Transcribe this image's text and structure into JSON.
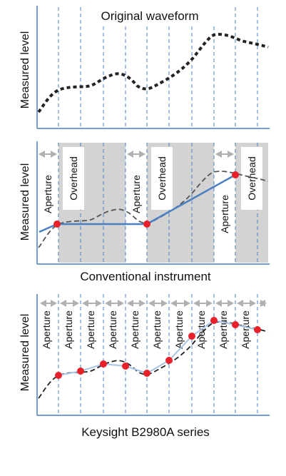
{
  "colors": {
    "axis": "#4a7fc1",
    "grid": "#4a7fc1",
    "waveform": "#222222",
    "sample_line": "#4a7fc1",
    "sample_dot": "#e8202a",
    "overhead_fill": "#d3d3d3",
    "arrow": "#b0b0b0"
  },
  "panel1": {
    "title": "Original waveform",
    "ylabel": "Measured level"
  },
  "panel2": {
    "ylabel": "Measured level",
    "caption": "Conventional instrument",
    "aperture_label": "Aperture",
    "overhead_label": "Overhead"
  },
  "panel3": {
    "ylabel": "Measured level",
    "caption": "Keysight B2980A series",
    "aperture_label": "Aperture"
  }
}
